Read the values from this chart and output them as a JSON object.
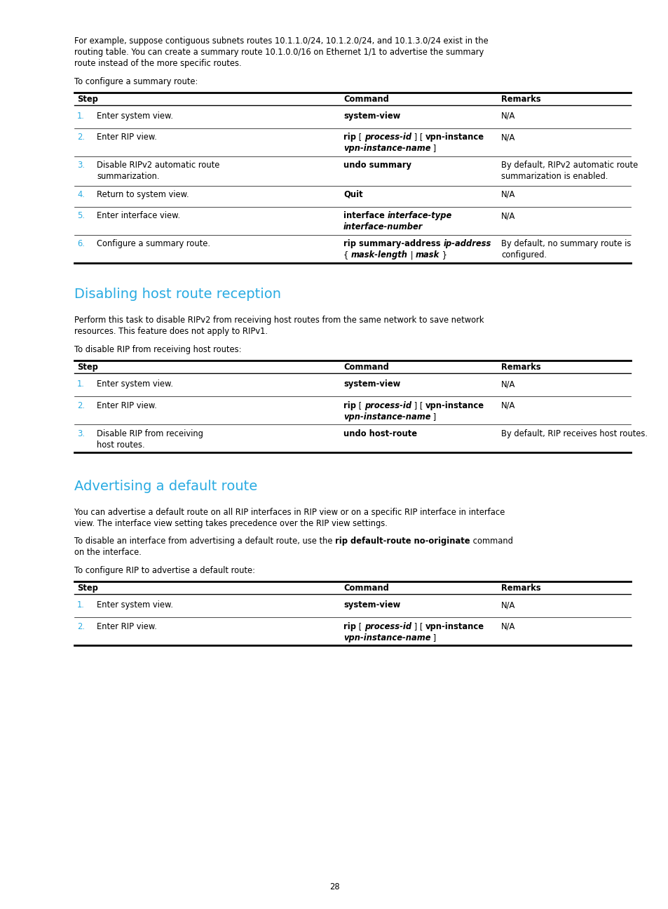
{
  "bg_color": "#ffffff",
  "text_color": "#000000",
  "cyan_color": "#29abe2",
  "page_number": "28",
  "intro_text1": "For example, suppose contiguous subnets routes 10.1.1.0/24, 10.1.2.0/24, and 10.1.3.0/24 exist in the",
  "intro_text2": "routing table. You can create a summary route 10.1.0.0/16 on Ethernet 1/1 to advertise the summary",
  "intro_text3": "route instead of the more specific routes.",
  "intro_text4": "To configure a summary route:",
  "section1_title": "Disabling host route reception",
  "section1_para1": "Perform this task to disable RIPv2 from receiving host routes from the same network to save network",
  "section1_para2": "resources. This feature does not apply to RIPv1.",
  "section1_para3": "To disable RIP from receiving host routes:",
  "section2_title": "Advertising a default route",
  "section2_para1": "You can advertise a default route on all RIP interfaces in RIP view or on a specific RIP interface in interface",
  "section2_para2": "view. The interface view setting takes precedence over the RIP view settings.",
  "section2_para4": "To configure RIP to advertise a default route:",
  "page_number_text": "28"
}
